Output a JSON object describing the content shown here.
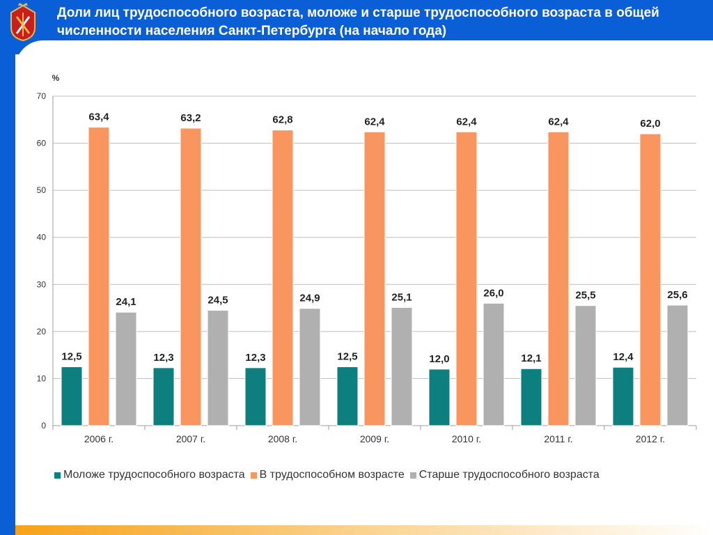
{
  "header": {
    "title": "Доли лиц трудоспособного возраста, моложе и старше трудоспособного возраста в общей численности населения Санкт-Петербурга (на начало года)"
  },
  "colors": {
    "header_blue": "#0b5fd6",
    "accent_orange": "#f6a21a"
  },
  "chart_data": {
    "type": "bar",
    "unit_label": "%",
    "categories": [
      "2006 г.",
      "2007 г.",
      "2008 г.",
      "2009 г.",
      "2010 г.",
      "2011 г.",
      "2012 г."
    ],
    "series": [
      {
        "name": "Моложе трудоспособного возраста",
        "color": "#0e7f7f",
        "values": [
          12.5,
          12.3,
          12.3,
          12.5,
          12.0,
          12.1,
          12.4
        ],
        "labels": [
          "12,5",
          "12,3",
          "12,3",
          "12,5",
          "12,0",
          "12,1",
          "12,4"
        ]
      },
      {
        "name": "В трудоспособном возрасте",
        "color": "#f9965f",
        "values": [
          63.4,
          63.2,
          62.8,
          62.4,
          62.4,
          62.4,
          62.0
        ],
        "labels": [
          "63,4",
          "63,2",
          "62,8",
          "62,4",
          "62,4",
          "62,4",
          "62,0"
        ]
      },
      {
        "name": "Старше трудоспособного возраста",
        "color": "#b0b0b0",
        "values": [
          24.1,
          24.5,
          24.9,
          25.1,
          26.0,
          25.5,
          25.6
        ],
        "labels": [
          "24,1",
          "24,5",
          "24,9",
          "25,1",
          "26,0",
          "25,5",
          "25,6"
        ]
      }
    ],
    "ylim": [
      0,
      70
    ],
    "yticks": [
      0,
      10,
      20,
      30,
      40,
      50,
      60,
      70
    ],
    "grid": true,
    "legend_position": "bottom"
  }
}
